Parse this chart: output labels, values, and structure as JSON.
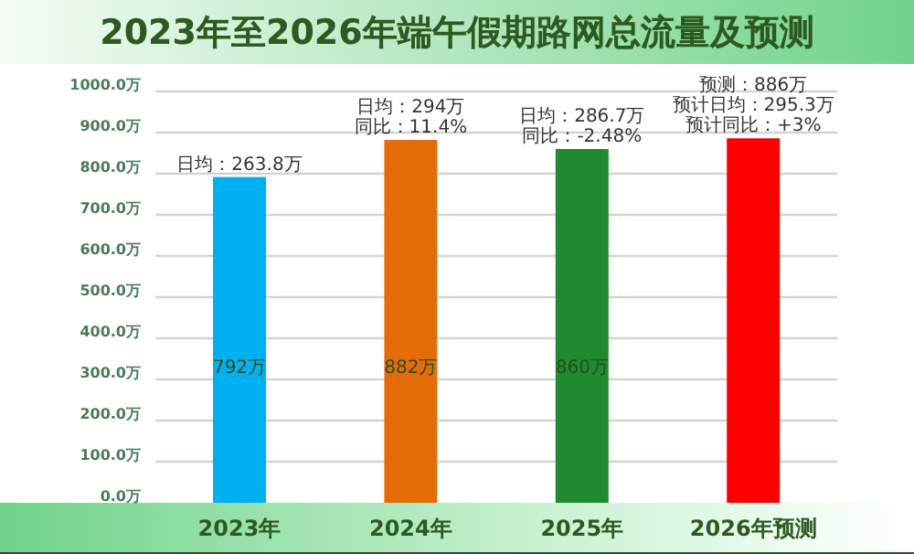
{
  "chart_data": {
    "type": "bar",
    "title": "2023年至2026年端午假期路网总流量及预测",
    "categories": [
      "2023年",
      "2024年",
      "2025年",
      "2026年预测"
    ],
    "values": [
      792,
      882,
      860,
      886
    ],
    "colors": [
      "#00b0f0",
      "#e36c09",
      "#1e8c2e",
      "#ff0000"
    ],
    "value_labels": [
      "792万",
      "882万",
      "860万",
      null
    ],
    "ylim": [
      0,
      1000
    ],
    "yticks": [
      {
        "value": 0,
        "label": "0.0万"
      },
      {
        "value": 100,
        "label": "100.0万"
      },
      {
        "value": 200,
        "label": "200.0万"
      },
      {
        "value": 300,
        "label": "300.0万"
      },
      {
        "value": 400,
        "label": "400.0万"
      },
      {
        "value": 500,
        "label": "500.0万"
      },
      {
        "value": 600,
        "label": "600.0万"
      },
      {
        "value": 700,
        "label": "700.0万"
      },
      {
        "value": 800,
        "label": "800.0万"
      },
      {
        "value": 900,
        "label": "900.0万"
      },
      {
        "value": 1000,
        "label": "1000.0万"
      }
    ],
    "grid": "y",
    "annotations": [
      {
        "text": "日均：263.8万",
        "x": "2023年",
        "y": 792
      },
      {
        "text": "日均：294万",
        "x": "2024年",
        "y": 882
      },
      {
        "text": "同比：11.4%",
        "x": "2024年",
        "y": 882
      },
      {
        "text": "日均：286.7万",
        "x": "2025年",
        "y": 860
      },
      {
        "text": "同比：-2.48%",
        "x": "2025年",
        "y": 860
      },
      {
        "text": "预测：886万",
        "x": "2026年预测",
        "y": 886
      },
      {
        "text": "预计日均：295.3万",
        "x": "2026年预测",
        "y": 886
      },
      {
        "text": "预计同比：+3%",
        "x": "2026年预测",
        "y": 886
      }
    ]
  }
}
